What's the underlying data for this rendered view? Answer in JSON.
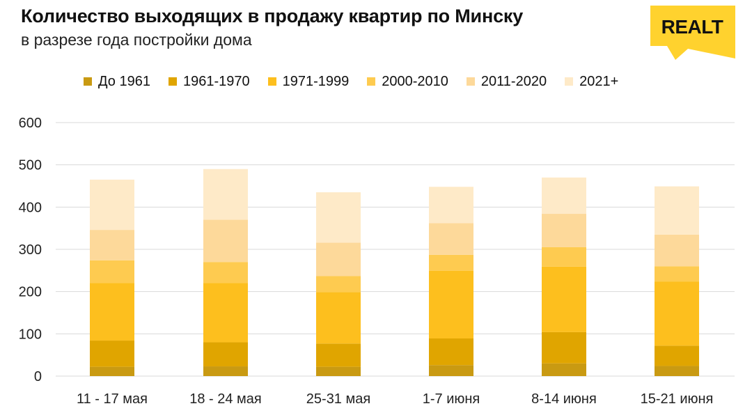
{
  "header": {
    "title": "Количество выходящих в продажу квартир по Минску",
    "subtitle": "в разрезе года постройки дома"
  },
  "logo": {
    "text": "REALT",
    "background_color": "#FFD22E",
    "text_color": "#111111"
  },
  "colors": {
    "series": [
      "#C99A12",
      "#E0A500",
      "#FDBF1E",
      "#FECB50",
      "#FDD99A",
      "#FEEAC8"
    ],
    "grid": "#D9D9D9",
    "axis_text": "#222222"
  },
  "chart_data": {
    "type": "bar",
    "stacked": true,
    "categories": [
      "11 - 17 мая",
      "18 - 24 мая",
      "25-31 мая",
      "1-7 июня",
      "8-14 июня",
      "15-21 июня"
    ],
    "series": [
      {
        "name": "До 1961",
        "values": [
          22,
          23,
          22,
          26,
          30,
          24
        ]
      },
      {
        "name": "1961-1970",
        "values": [
          62,
          57,
          55,
          63,
          74,
          48
        ]
      },
      {
        "name": "1971-1999",
        "values": [
          136,
          140,
          122,
          160,
          155,
          152
        ]
      },
      {
        "name": "2000-2010",
        "values": [
          54,
          50,
          38,
          38,
          46,
          36
        ]
      },
      {
        "name": "2011-2020",
        "values": [
          72,
          100,
          79,
          75,
          79,
          75
        ]
      },
      {
        "name": "2021+",
        "values": [
          119,
          120,
          119,
          86,
          86,
          114
        ]
      }
    ],
    "yticks": [
      "0",
      "100",
      "200",
      "300",
      "400",
      "500",
      "600"
    ],
    "ylim": [
      0,
      600
    ],
    "grid": true,
    "legend_position": "top"
  }
}
